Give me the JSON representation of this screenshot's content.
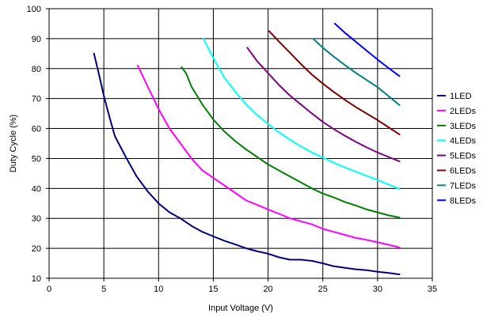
{
  "chart_data": {
    "type": "line",
    "xlabel": "Input Voltage (V)",
    "ylabel": "Duty Cycle (%)",
    "xlim": [
      0,
      35
    ],
    "ylim": [
      10,
      100
    ],
    "x_ticks": [
      0,
      5,
      10,
      15,
      20,
      25,
      30,
      35
    ],
    "y_ticks": [
      10,
      20,
      30,
      40,
      50,
      60,
      70,
      80,
      90,
      100
    ],
    "grid": true,
    "legend_position": "right",
    "series": [
      {
        "name": "1LED",
        "color": "#000080",
        "points": [
          [
            4.1,
            85
          ],
          [
            4.5,
            79
          ],
          [
            5,
            71
          ],
          [
            5.5,
            64
          ],
          [
            6,
            57.5
          ],
          [
            7,
            50.5
          ],
          [
            8,
            44
          ],
          [
            9,
            39
          ],
          [
            10,
            35
          ],
          [
            11,
            32
          ],
          [
            12,
            30
          ],
          [
            13,
            27.5
          ],
          [
            14,
            25.5
          ],
          [
            15,
            24
          ],
          [
            16,
            22.5
          ],
          [
            17,
            21.3
          ],
          [
            18,
            20
          ],
          [
            19,
            19
          ],
          [
            20,
            18.2
          ],
          [
            21,
            17
          ],
          [
            22,
            16.2
          ],
          [
            23,
            16.2
          ],
          [
            24,
            15.8
          ],
          [
            25,
            15
          ],
          [
            26,
            14
          ],
          [
            27,
            13.5
          ],
          [
            28,
            13
          ],
          [
            29,
            12.7
          ],
          [
            30,
            12.2
          ],
          [
            31,
            11.8
          ],
          [
            32,
            11.3
          ]
        ]
      },
      {
        "name": "2LEDs",
        "color": "#FF00FF",
        "points": [
          [
            8.1,
            81
          ],
          [
            9,
            74
          ],
          [
            10,
            66.5
          ],
          [
            11,
            60
          ],
          [
            12,
            55
          ],
          [
            13,
            50
          ],
          [
            14,
            46
          ],
          [
            15,
            43.5
          ],
          [
            16,
            41
          ],
          [
            17,
            38.5
          ],
          [
            18,
            36
          ],
          [
            19,
            34.5
          ],
          [
            20,
            33
          ],
          [
            21,
            31.5
          ],
          [
            22,
            30
          ],
          [
            23,
            29
          ],
          [
            24,
            28
          ],
          [
            25,
            26.5
          ],
          [
            26,
            25.5
          ],
          [
            27,
            24.5
          ],
          [
            28,
            23.5
          ],
          [
            29,
            22.8
          ],
          [
            30,
            22
          ],
          [
            31,
            21.2
          ],
          [
            32,
            20.3
          ]
        ]
      },
      {
        "name": "3LEDs",
        "color": "#008000",
        "points": [
          [
            12.1,
            80.5
          ],
          [
            12.5,
            78.5
          ],
          [
            13,
            74
          ],
          [
            14,
            68
          ],
          [
            15,
            63
          ],
          [
            16,
            59
          ],
          [
            17,
            55.8
          ],
          [
            18,
            53
          ],
          [
            19,
            50.5
          ],
          [
            20,
            48
          ],
          [
            21,
            46
          ],
          [
            22,
            44
          ],
          [
            23,
            42
          ],
          [
            24,
            40
          ],
          [
            25,
            38.3
          ],
          [
            26,
            37
          ],
          [
            27,
            35.5
          ],
          [
            28,
            34.3
          ],
          [
            29,
            33
          ],
          [
            30,
            32
          ],
          [
            31,
            31
          ],
          [
            32,
            30.3
          ]
        ]
      },
      {
        "name": "4LEDs",
        "color": "#00FFFF",
        "points": [
          [
            14.1,
            90
          ],
          [
            15,
            83.5
          ],
          [
            16,
            77
          ],
          [
            17,
            72.3
          ],
          [
            18,
            68
          ],
          [
            19,
            64.5
          ],
          [
            20,
            61.5
          ],
          [
            21,
            58.7
          ],
          [
            22,
            56.3
          ],
          [
            23,
            54
          ],
          [
            24,
            52
          ],
          [
            25,
            50.3
          ],
          [
            26,
            48.6
          ],
          [
            27,
            47
          ],
          [
            28,
            45.6
          ],
          [
            29,
            44.2
          ],
          [
            30,
            42.8
          ],
          [
            31,
            41.3
          ],
          [
            32,
            39.8
          ]
        ]
      },
      {
        "name": "5LEDs",
        "color": "#800080",
        "points": [
          [
            18.1,
            87
          ],
          [
            19,
            82.5
          ],
          [
            20,
            78.5
          ],
          [
            21,
            74.5
          ],
          [
            22,
            71
          ],
          [
            23,
            68
          ],
          [
            24,
            65
          ],
          [
            25,
            62.2
          ],
          [
            26,
            59.8
          ],
          [
            27,
            57.6
          ],
          [
            28,
            55.6
          ],
          [
            29,
            53.7
          ],
          [
            30,
            52
          ],
          [
            31,
            50.5
          ],
          [
            32,
            49
          ]
        ]
      },
      {
        "name": "6LEDs",
        "color": "#800000",
        "points": [
          [
            20.1,
            92.5
          ],
          [
            21,
            89
          ],
          [
            22,
            85.3
          ],
          [
            23,
            81.5
          ],
          [
            24,
            78
          ],
          [
            25,
            75
          ],
          [
            26,
            72.2
          ],
          [
            27,
            69.6
          ],
          [
            28,
            67.2
          ],
          [
            29,
            65
          ],
          [
            30,
            62.8
          ],
          [
            31,
            60.4
          ],
          [
            32,
            58
          ]
        ]
      },
      {
        "name": "7LEDs",
        "color": "#008080",
        "points": [
          [
            24.1,
            90
          ],
          [
            25,
            87
          ],
          [
            26,
            84
          ],
          [
            27,
            81.2
          ],
          [
            28,
            78.6
          ],
          [
            29,
            76.2
          ],
          [
            30,
            73.8
          ],
          [
            31,
            70.8
          ],
          [
            32,
            67.8
          ]
        ]
      },
      {
        "name": "8LEDs",
        "color": "#0000FF",
        "points": [
          [
            26.1,
            95
          ],
          [
            27,
            92
          ],
          [
            28,
            89
          ],
          [
            29,
            86
          ],
          [
            30,
            83
          ],
          [
            31,
            80.2
          ],
          [
            32,
            77.5
          ]
        ]
      }
    ]
  }
}
